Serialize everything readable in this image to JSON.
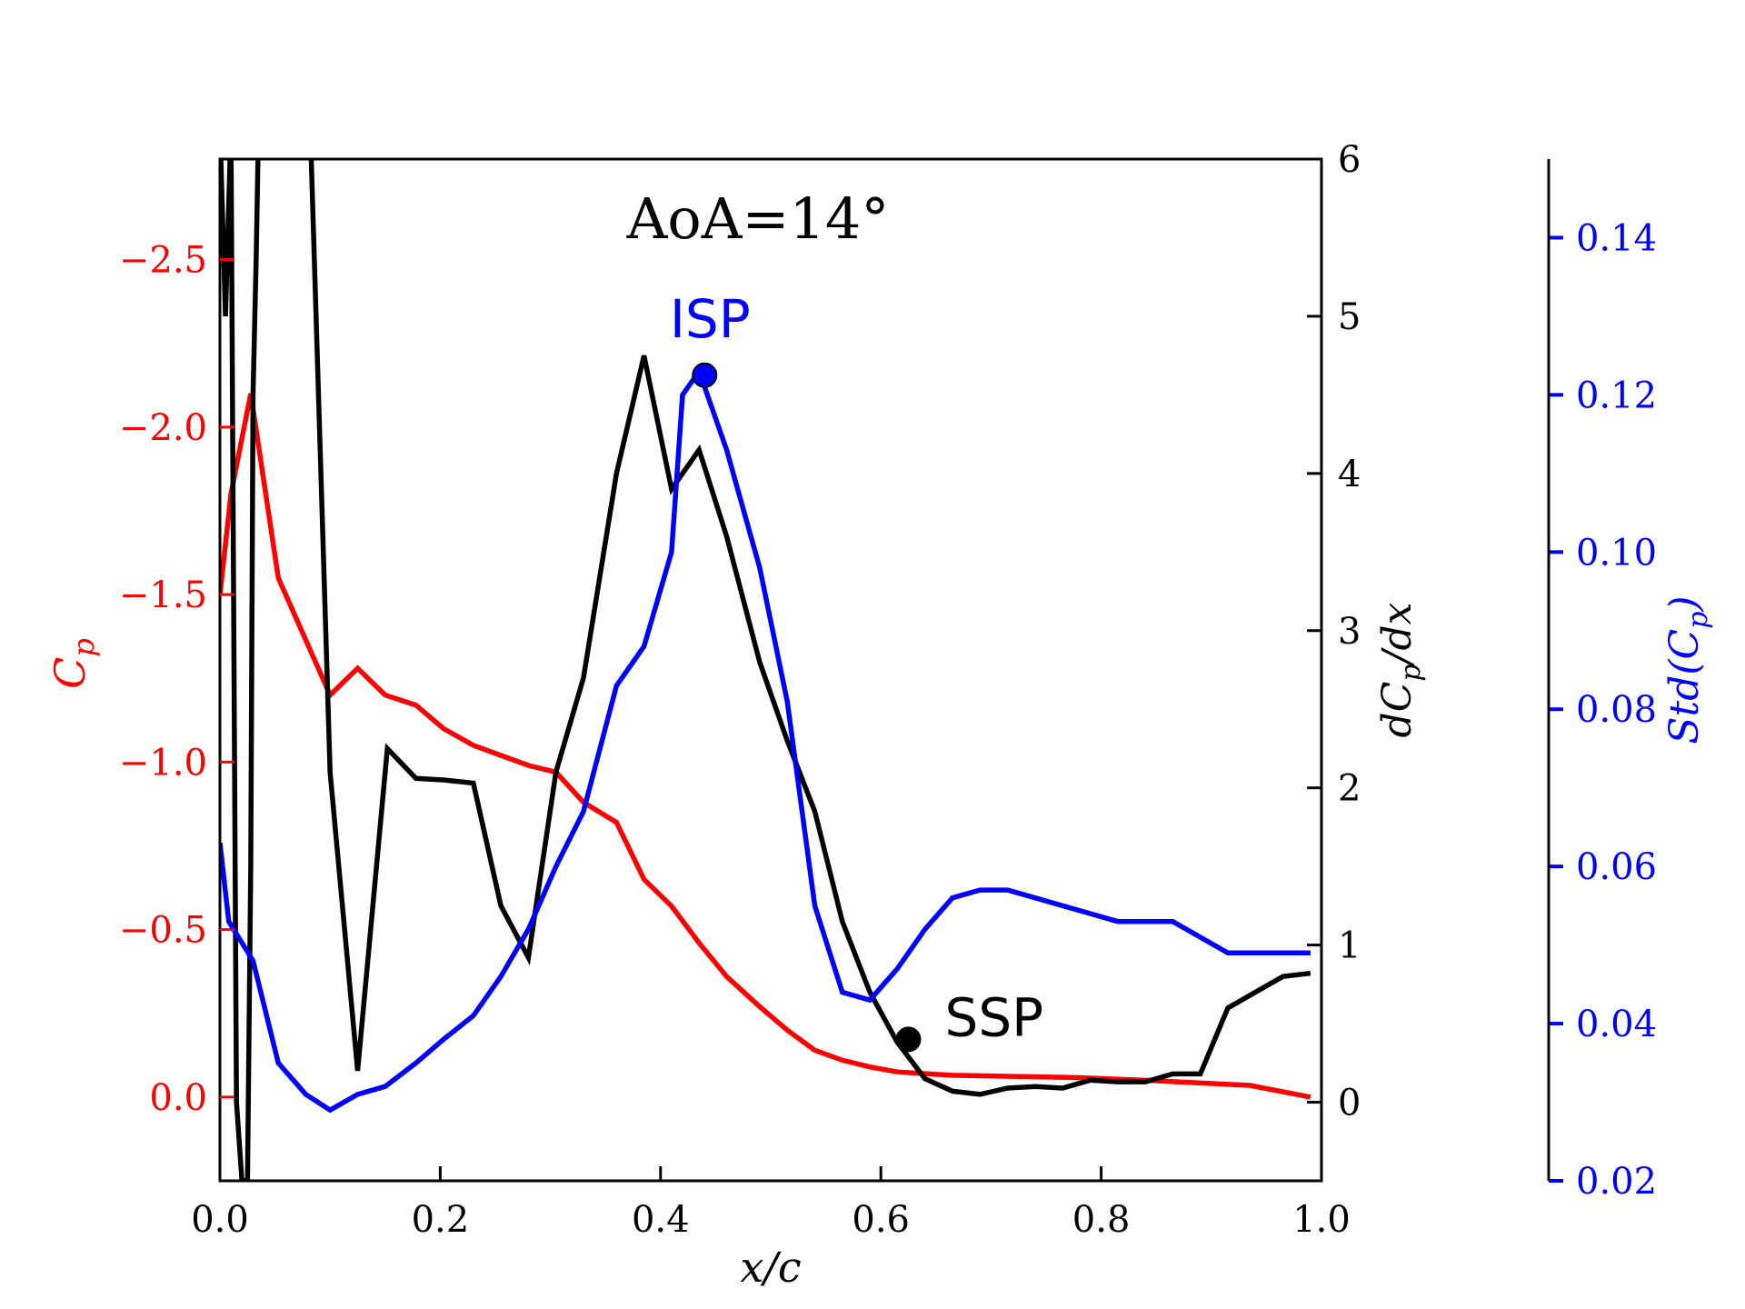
{
  "chart_data": {
    "type": "line",
    "title": "AoA=14°",
    "xlabel": "x/c",
    "xlim": [
      0.0,
      1.0
    ],
    "x_ticks": [
      "0.0",
      "0.2",
      "0.4",
      "0.6",
      "0.8",
      "1.0"
    ],
    "axes": {
      "left": {
        "label": "Cp",
        "label_sub": "p",
        "label_main": "C",
        "inverted": true,
        "lim": [
          0.25,
          -2.8
        ],
        "ticks": [
          0.0,
          -0.5,
          -1.0,
          -1.5,
          -2.0,
          -2.5
        ],
        "tick_labels": [
          "0.0",
          "−0.5",
          "−1.0",
          "−1.5",
          "−2.0",
          "−2.5"
        ],
        "color": "#ff0000"
      },
      "right": {
        "label": "dCp/dx",
        "label_main": "dC",
        "label_sub": "p",
        "label_tail": "/dx",
        "lim": [
          -0.5,
          6.0
        ],
        "ticks": [
          0,
          1,
          2,
          3,
          4,
          5,
          6
        ],
        "tick_labels": [
          "0",
          "1",
          "2",
          "3",
          "4",
          "5",
          "6"
        ],
        "color": "#000000"
      },
      "far_right": {
        "label": "Std(Cp)",
        "label_main": "Std(C",
        "label_sub": "p",
        "label_tail": ")",
        "lim": [
          0.02,
          0.15
        ],
        "ticks": [
          0.02,
          0.04,
          0.06,
          0.08,
          0.1,
          0.12,
          0.14
        ],
        "tick_labels": [
          "0.02",
          "0.04",
          "0.06",
          "0.08",
          "0.10",
          "0.12",
          "0.14"
        ],
        "color": "#0000ff"
      }
    },
    "series": [
      {
        "name": "Cp",
        "axis": "left",
        "color": "#ff0000",
        "x": [
          0.0,
          0.01,
          0.028,
          0.053,
          0.1,
          0.125,
          0.15,
          0.178,
          0.203,
          0.23,
          0.255,
          0.28,
          0.305,
          0.33,
          0.36,
          0.385,
          0.41,
          0.435,
          0.46,
          0.49,
          0.515,
          0.54,
          0.565,
          0.59,
          0.615,
          0.64,
          0.665,
          0.715,
          0.78,
          0.84,
          0.935,
          0.99
        ],
        "y": [
          -1.5,
          -1.8,
          -2.1,
          -1.55,
          -1.2,
          -1.28,
          -1.2,
          -1.17,
          -1.1,
          -1.05,
          -1.02,
          -0.99,
          -0.97,
          -0.88,
          -0.82,
          -0.65,
          -0.57,
          -0.46,
          -0.36,
          -0.27,
          -0.2,
          -0.14,
          -0.11,
          -0.09,
          -0.075,
          -0.07,
          -0.065,
          -0.062,
          -0.058,
          -0.05,
          -0.035,
          0.0
        ]
      },
      {
        "name": "dCp/dx",
        "axis": "right",
        "color": "#000000",
        "x": [
          0.0,
          0.005,
          0.01,
          0.015,
          0.02,
          0.025,
          0.028,
          0.03,
          0.033,
          0.035,
          0.038,
          0.082,
          0.1,
          0.125,
          0.152,
          0.178,
          0.203,
          0.23,
          0.255,
          0.28,
          0.305,
          0.33,
          0.36,
          0.385,
          0.41,
          0.435,
          0.46,
          0.49,
          0.515,
          0.54,
          0.565,
          0.59,
          0.615,
          0.64,
          0.665,
          0.69,
          0.715,
          0.74,
          0.765,
          0.79,
          0.815,
          0.84,
          0.865,
          0.89,
          0.915,
          0.94,
          0.965,
          0.99
        ],
        "y": [
          6.2,
          5.0,
          6.2,
          0.0,
          -0.5,
          -0.5,
          1.5,
          4.5,
          5.4,
          6.2,
          6.5,
          6.2,
          2.1,
          0.2,
          2.25,
          2.06,
          2.05,
          2.03,
          1.25,
          0.92,
          2.1,
          2.7,
          4.0,
          4.75,
          3.9,
          4.15,
          3.6,
          2.8,
          2.3,
          1.85,
          1.15,
          0.7,
          0.38,
          0.15,
          0.07,
          0.05,
          0.09,
          0.1,
          0.09,
          0.14,
          0.13,
          0.13,
          0.18,
          0.18,
          0.6,
          0.7,
          0.8,
          0.82
        ]
      },
      {
        "name": "Std(Cp)",
        "axis": "far_right",
        "color": "#0000ff",
        "x": [
          0.0,
          0.008,
          0.03,
          0.053,
          0.078,
          0.1,
          0.125,
          0.15,
          0.178,
          0.203,
          0.23,
          0.255,
          0.28,
          0.305,
          0.33,
          0.36,
          0.385,
          0.41,
          0.42,
          0.435,
          0.46,
          0.49,
          0.515,
          0.54,
          0.565,
          0.59,
          0.615,
          0.64,
          0.665,
          0.69,
          0.715,
          0.74,
          0.765,
          0.79,
          0.815,
          0.84,
          0.865,
          0.89,
          0.915,
          0.94,
          0.99
        ],
        "y": [
          0.063,
          0.053,
          0.048,
          0.035,
          0.031,
          0.029,
          0.031,
          0.032,
          0.035,
          0.038,
          0.041,
          0.046,
          0.052,
          0.06,
          0.067,
          0.083,
          0.088,
          0.1,
          0.12,
          0.123,
          0.113,
          0.098,
          0.081,
          0.055,
          0.044,
          0.043,
          0.047,
          0.052,
          0.056,
          0.057,
          0.057,
          0.056,
          0.055,
          0.054,
          0.053,
          0.053,
          0.053,
          0.051,
          0.049,
          0.049,
          0.049
        ]
      }
    ],
    "markers": [
      {
        "label": "ISP",
        "axis": "far_right",
        "x": 0.44,
        "y": 0.1225,
        "color": "#0000ff"
      },
      {
        "label": "SSP",
        "axis": "right",
        "x": 0.625,
        "y": 0.4,
        "color": "#000000"
      }
    ]
  }
}
